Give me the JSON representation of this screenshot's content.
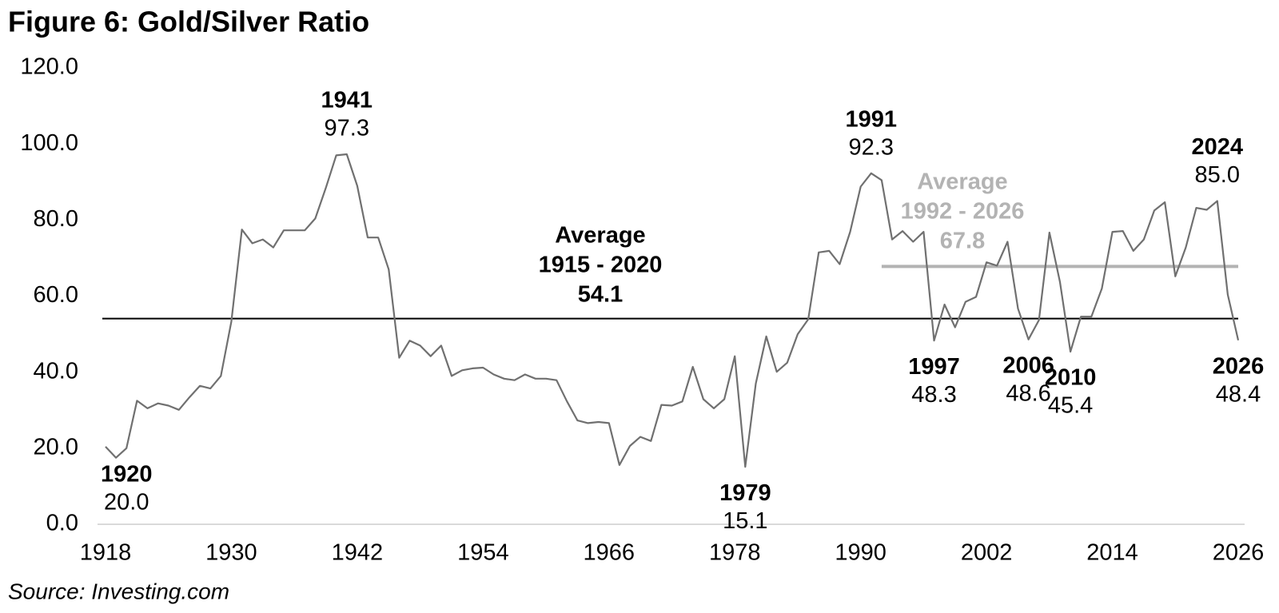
{
  "chart_data": {
    "type": "line",
    "title": "Figure 6: Gold/Silver Ratio",
    "source": "Source: Investing.com",
    "color": "#707070",
    "x": [
      1918,
      1919,
      1920,
      1921,
      1922,
      1923,
      1924,
      1925,
      1926,
      1927,
      1928,
      1929,
      1930,
      1931,
      1932,
      1933,
      1934,
      1935,
      1936,
      1937,
      1938,
      1939,
      1940,
      1941,
      1942,
      1943,
      1944,
      1945,
      1946,
      1947,
      1948,
      1949,
      1950,
      1951,
      1952,
      1953,
      1954,
      1955,
      1956,
      1957,
      1958,
      1959,
      1960,
      1961,
      1962,
      1963,
      1964,
      1965,
      1966,
      1967,
      1968,
      1969,
      1970,
      1971,
      1972,
      1973,
      1974,
      1975,
      1976,
      1977,
      1978,
      1979,
      1980,
      1981,
      1982,
      1983,
      1984,
      1985,
      1986,
      1987,
      1988,
      1989,
      1990,
      1991,
      1992,
      1993,
      1994,
      1995,
      1996,
      1997,
      1998,
      1999,
      2000,
      2001,
      2002,
      2003,
      2004,
      2005,
      2006,
      2007,
      2008,
      2009,
      2010,
      2011,
      2012,
      2013,
      2014,
      2015,
      2016,
      2017,
      2018,
      2019,
      2020,
      2021,
      2022,
      2023,
      2024,
      2025,
      2026
    ],
    "values": [
      20.4,
      17.5,
      20.0,
      32.5,
      30.5,
      31.8,
      31.2,
      30.1,
      33.4,
      36.4,
      35.7,
      39.0,
      53.3,
      77.5,
      73.9,
      74.9,
      72.8,
      77.3,
      77.3,
      77.3,
      80.4,
      88.4,
      97.0,
      97.3,
      89.0,
      75.4,
      75.4,
      67.0,
      43.8,
      48.3,
      47.0,
      44.2,
      47.0,
      39.0,
      40.5,
      41.0,
      41.2,
      39.4,
      38.3,
      37.9,
      39.4,
      38.3,
      38.3,
      37.9,
      32.3,
      27.3,
      26.6,
      26.9,
      26.6,
      15.6,
      20.6,
      23.0,
      21.9,
      31.4,
      31.2,
      32.3,
      41.4,
      32.9,
      30.5,
      32.9,
      44.2,
      15.1,
      37.0,
      49.4,
      40.1,
      42.5,
      50.0,
      53.9,
      71.5,
      71.9,
      68.4,
      76.9,
      88.8,
      92.3,
      90.5,
      74.9,
      77.1,
      74.3,
      76.9,
      48.3,
      57.8,
      51.8,
      58.5,
      59.8,
      68.9,
      68.0,
      74.3,
      56.7,
      48.6,
      53.7,
      76.7,
      63.7,
      45.4,
      54.6,
      54.6,
      62.0,
      76.9,
      77.1,
      71.9,
      74.9,
      82.5,
      84.7,
      65.2,
      72.8,
      83.2,
      82.7,
      85.0,
      60.4,
      48.4
    ],
    "xlim": [
      1918,
      2026
    ],
    "ylim": [
      0,
      120
    ],
    "xticks": [
      1918,
      1930,
      1942,
      1954,
      1966,
      1978,
      1990,
      2002,
      2014,
      2026
    ],
    "yticks": [
      {
        "value": 0,
        "label": "0.0"
      },
      {
        "value": 20,
        "label": "20.0"
      },
      {
        "value": 40,
        "label": "40.0"
      },
      {
        "value": 60,
        "label": "60.0"
      },
      {
        "value": 80,
        "label": "80.0"
      },
      {
        "value": 100,
        "label": "100.0"
      },
      {
        "value": 120,
        "label": "120.0"
      }
    ],
    "averages": [
      {
        "label": "Average",
        "period": "1915 - 2020",
        "value": 54.1,
        "color": "#000000"
      },
      {
        "label": "Average",
        "period": "1992 - 2026",
        "value": 67.8,
        "color": "#b3b3b3",
        "from": 1992
      }
    ],
    "annotations": [
      {
        "x": 1920,
        "y": 20.0,
        "y_label": "20.0",
        "position": "below"
      },
      {
        "x": 1941,
        "y": 97.3,
        "y_label": "97.3",
        "position": "above"
      },
      {
        "x": 1979,
        "y": 15.1,
        "y_label": "15.1",
        "position": "below"
      },
      {
        "x": 1991,
        "y": 92.3,
        "y_label": "92.3",
        "position": "above"
      },
      {
        "x": 1997,
        "y": 48.3,
        "y_label": "48.3",
        "position": "below"
      },
      {
        "x": 2006,
        "y": 48.6,
        "y_label": "48.6",
        "position": "below"
      },
      {
        "x": 2010,
        "y": 45.4,
        "y_label": "45.4",
        "position": "below"
      },
      {
        "x": 2024,
        "y": 85.0,
        "y_label": "85.0",
        "position": "above"
      },
      {
        "x": 2026,
        "y": 48.4,
        "y_label": "48.4",
        "position": "below"
      }
    ]
  }
}
